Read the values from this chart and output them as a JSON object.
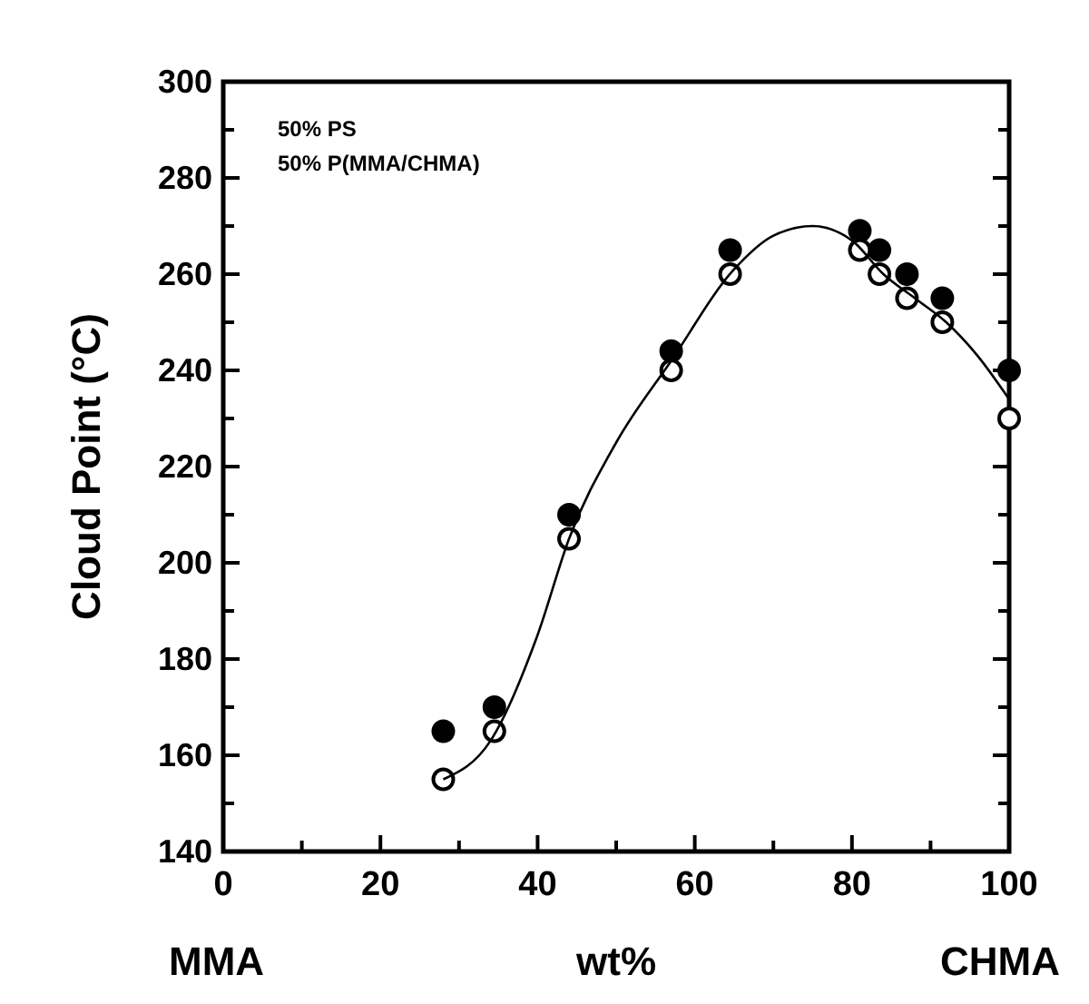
{
  "chart_data": {
    "type": "scatter",
    "ylabel": "Cloud Point (°C)",
    "xlabel": "wt%",
    "annotations": [
      {
        "text": "MMA"
      },
      {
        "text": "CHMA"
      },
      "50% PS",
      "50% P(MMA/CHMA)"
    ],
    "xlim": [
      0,
      100
    ],
    "ylim": [
      140,
      300
    ],
    "xticks": [
      0,
      {
        "value": 10,
        "label": null
      },
      20,
      {
        "value": 30,
        "label": null
      },
      40,
      {
        "value": 50,
        "label": null
      },
      60,
      {
        "value": 70,
        "label": null
      },
      80,
      {
        "value": 90,
        "label": null
      },
      100
    ],
    "yticks": [
      140,
      {
        "value": 150,
        "label": null
      },
      160,
      {
        "value": 170,
        "label": null
      },
      180,
      {
        "value": 190,
        "label": null
      },
      200,
      {
        "value": 210,
        "label": null
      },
      220,
      {
        "value": 230,
        "label": null
      },
      240,
      {
        "value": 250,
        "label": null
      },
      260,
      {
        "value": 270,
        "label": null
      },
      280,
      {
        "value": 290,
        "label": null
      },
      300
    ],
    "grid": false,
    "series": [
      {
        "marker": "circle",
        "color": "#000000",
        "x": [
          28,
          34.5,
          44,
          57,
          64.5,
          81,
          83.5,
          87,
          91.5,
          100
        ],
        "values": [
          165,
          170,
          210,
          244,
          265,
          269,
          265,
          260,
          255,
          240
        ]
      },
      {
        "marker": "circle",
        "color": "#000000",
        "x": [
          28,
          34.5,
          44,
          57,
          64.5,
          81,
          83.5,
          87,
          91.5,
          100
        ],
        "values": [
          155,
          165,
          205,
          240,
          260,
          265,
          260,
          255,
          250,
          230
        ]
      },
      {
        "type": "line",
        "color": "#000000",
        "x": [
          28,
          34,
          40,
          44,
          50,
          57,
          65,
          70,
          75,
          80,
          84,
          88,
          92,
          96,
          100
        ],
        "values": [
          155,
          163,
          185,
          205,
          225,
          242,
          261,
          268,
          270,
          267,
          260,
          255,
          250,
          243,
          234
        ]
      }
    ]
  }
}
